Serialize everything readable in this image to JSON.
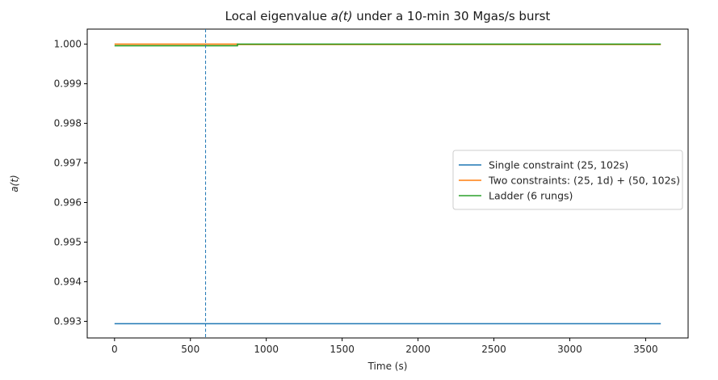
{
  "chart_data": {
    "type": "line",
    "title_prefix": "Local eigenvalue ",
    "title_math": "a(t)",
    "title_suffix": " under a 10-min 30 Mgas/s burst",
    "xlabel": "Time (s)",
    "ylabel": "a(t)",
    "xlim": [
      -180,
      3780
    ],
    "ylim": [
      0.99258,
      1.00038
    ],
    "xticks": [
      0,
      500,
      1000,
      1500,
      2000,
      2500,
      3000,
      3500
    ],
    "xtick_labels": [
      "0",
      "500",
      "1000",
      "1500",
      "2000",
      "2500",
      "3000",
      "3500"
    ],
    "yticks": [
      0.993,
      0.994,
      0.995,
      0.996,
      0.997,
      0.998,
      0.999,
      1.0
    ],
    "ytick_labels": [
      "0.993",
      "0.994",
      "0.995",
      "0.996",
      "0.997",
      "0.998",
      "0.999",
      "1.000"
    ],
    "vline": {
      "x": 600,
      "color": "#1f77b4",
      "style": "dashed"
    },
    "grid": false,
    "legend_placement": "center-right",
    "series": [
      {
        "name": "Single constraint (25, 102s)",
        "color": "#1f77b4",
        "x": [
          0,
          3600
        ],
        "y": [
          0.99294,
          0.99294
        ]
      },
      {
        "name": "Two constraints: (25, 1d) + (50, 102s)",
        "color": "#ff7f0e",
        "x": [
          0,
          810,
          810,
          3600
        ],
        "y": [
          1.0,
          1.0,
          0.99999,
          0.99999
        ]
      },
      {
        "name": "Ladder (6 rungs)",
        "color": "#2ca02c",
        "x": [
          0,
          810,
          810,
          3600
        ],
        "y": [
          0.99996,
          0.99996,
          1.0,
          1.0
        ]
      }
    ]
  }
}
